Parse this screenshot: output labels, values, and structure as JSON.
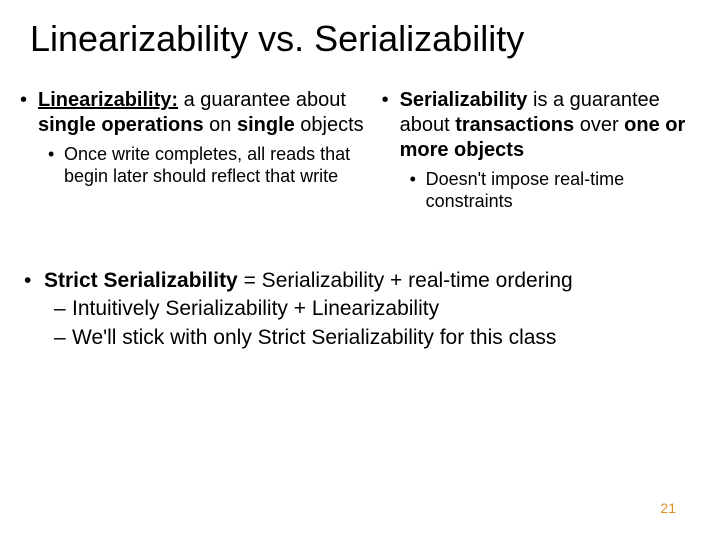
{
  "title": "Linearizability vs. Serializability",
  "left": {
    "main_html": "<b><span class='u'>Linearizability:</span></b> a guarantee about <b>single operations</b> on <b>single</b> objects",
    "sub": "Once write completes, all reads that begin later should reflect that write"
  },
  "right": {
    "main_html": "<b>Serializability</b> is a guarantee about <b>transactions</b> over <b>one or more objects</b>",
    "sub": "Doesn't impose real-time constraints"
  },
  "bottom": {
    "line_html": "<b>Strict Serializability</b> = Serializability + real-time ordering",
    "sub1": "Intuitively Serializability + Linearizability",
    "sub2": "We'll stick with only Strict Serializability for this class"
  },
  "page_number": "21",
  "colors": {
    "text": "#000000",
    "page_number": "#e38e27",
    "background": "#ffffff"
  },
  "fonts": {
    "title_size_pt": 36,
    "body_size_pt": 20,
    "sub_size_pt": 18,
    "bottom_size_pt": 21,
    "pagenum_size_pt": 14
  }
}
